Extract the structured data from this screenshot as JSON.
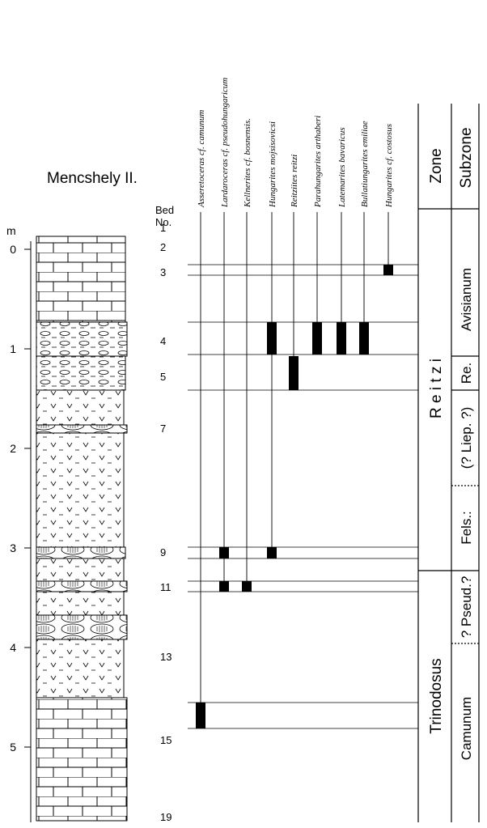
{
  "title": "Mencshely II.",
  "bed_header": [
    "Bed",
    "No."
  ],
  "depth_unit": "m",
  "depth_ticks": [
    0,
    1,
    2,
    3,
    4,
    5
  ],
  "beds": [
    "1",
    "2",
    "3",
    "4",
    "5",
    "7",
    "9",
    "11",
    "13",
    "15",
    "19"
  ],
  "species": [
    "Asseretoceras cf. camunum",
    "Lardaroceras cf. pseudohungaricum",
    "Kellnerites cf. bosnensis.",
    "Hungarites mojsisovicsi",
    "Reitziites reitzi",
    "Parahungarites arthaberi",
    "Latemarites bavaricus",
    "Bullatiungarites emiliae",
    "Hungarites cf. costosus"
  ],
  "zone_header": "Zone",
  "subzone_header": "Subzone",
  "zones": [
    "R e i t z i",
    "Trinodosus"
  ],
  "subzones": [
    "Avisianum",
    "Re.",
    "(? Liep. ?)",
    "Fels.:",
    "? Pseud.?",
    "Camunum"
  ]
}
